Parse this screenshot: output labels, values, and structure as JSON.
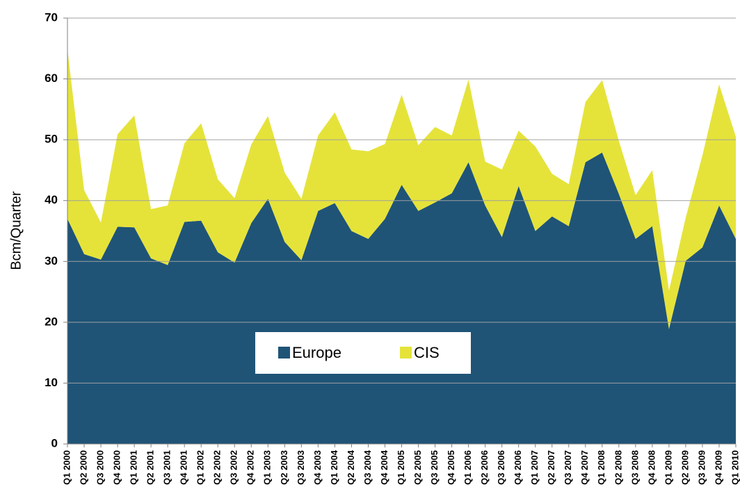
{
  "chart_data": {
    "type": "stacked_area",
    "ylabel": "Bcm/Quarter",
    "categories": [
      "Q1 2000",
      "Q2 2000",
      "Q3 2000",
      "Q4 2000",
      "Q1 2001",
      "Q2 2001",
      "Q3 2001",
      "Q4 2001",
      "Q1 2002",
      "Q2 2002",
      "Q3 2002",
      "Q4 2002",
      "Q1 2003",
      "Q2 2003",
      "Q3 2003",
      "Q4 2003",
      "Q1 2004",
      "Q2 2004",
      "Q3 2004",
      "Q4 2004",
      "Q1 2005",
      "Q2 2005",
      "Q3 2005",
      "Q4 2005",
      "Q1 2006",
      "Q2 2006",
      "Q3 2006",
      "Q4 2006",
      "Q1 2007",
      "Q2 2007",
      "Q3 2007",
      "Q4 2007",
      "Q1 2008",
      "Q2 2008",
      "Q3 2008",
      "Q4 2008",
      "Q1 2009",
      "Q2 2009",
      "Q3 2009",
      "Q4 2009",
      "Q1 2010"
    ],
    "series": [
      {
        "name": "Europe",
        "color": "#1f5477",
        "values": [
          37,
          31.2,
          30.3,
          35.7,
          35.6,
          30.5,
          29.4,
          36.5,
          36.7,
          31.5,
          29.8,
          36.3,
          40.3,
          33.2,
          30.2,
          38.3,
          39.6,
          35,
          33.7,
          37,
          42.6,
          38.3,
          39.7,
          41.2,
          46.3,
          39.2,
          34,
          42.4,
          35,
          37.4,
          35.8,
          46.3,
          47.9,
          41.1,
          33.7,
          35.8,
          18.9,
          30.1,
          32.3,
          39.2,
          33.7
        ]
      },
      {
        "name": "CIS",
        "color": "#e5e33a",
        "values": [
          27.8,
          10.5,
          6.1,
          15.2,
          18.4,
          8.1,
          9.8,
          12.9,
          16.0,
          12.0,
          10.6,
          12.9,
          13.6,
          11.4,
          10.1,
          12.4,
          14.9,
          13.4,
          14.4,
          12.3,
          14.8,
          10.8,
          12.4,
          9.5,
          13.6,
          7.2,
          11.1,
          9.1,
          13.9,
          7.0,
          6.9,
          9.9,
          11.9,
          8.7,
          7.2,
          9.2,
          6.3,
          7.1,
          15.1,
          19.9,
          16.8
        ]
      }
    ],
    "ylim": [
      0,
      70
    ],
    "yticks": [
      0,
      10,
      20,
      30,
      40,
      50,
      60,
      70
    ],
    "grid": true
  }
}
